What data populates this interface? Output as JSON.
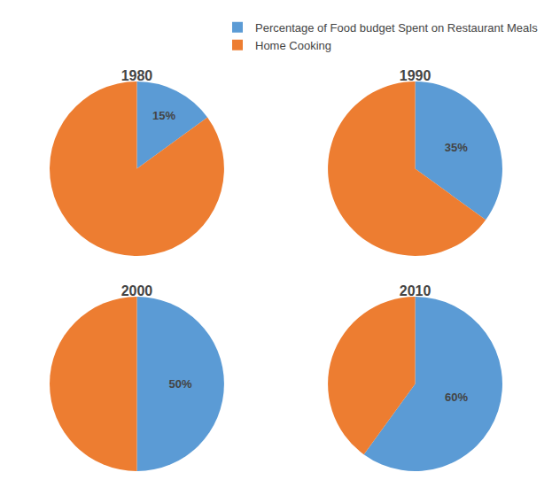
{
  "chart_data": [
    {
      "type": "pie",
      "title": "1980",
      "categories": [
        "Percentage of Food budget Spent on Restaurant Meals",
        "Home Cooking"
      ],
      "values": [
        15,
        85
      ],
      "value_labels": [
        "15%",
        null
      ],
      "data_labels": true,
      "colors": [
        "#5B9BD5",
        "#ED7D31"
      ],
      "legend": "top"
    },
    {
      "type": "pie",
      "title": "1990",
      "categories": [
        "Percentage of Food budget Spent on Restaurant Meals",
        "Home Cooking"
      ],
      "values": [
        35,
        65
      ],
      "value_labels": [
        "35%",
        null
      ],
      "data_labels": true,
      "colors": [
        "#5B9BD5",
        "#ED7D31"
      ],
      "legend": "top"
    },
    {
      "type": "pie",
      "title": "2000",
      "categories": [
        "Percentage of Food budget Spent on Restaurant Meals",
        "Home Cooking"
      ],
      "values": [
        50,
        50
      ],
      "value_labels": [
        "50%",
        null
      ],
      "data_labels": true,
      "colors": [
        "#5B9BD5",
        "#ED7D31"
      ],
      "legend": "top"
    },
    {
      "type": "pie",
      "title": "2010",
      "categories": [
        "Percentage of Food budget Spent on Restaurant Meals",
        "Home Cooking"
      ],
      "values": [
        60,
        40
      ],
      "value_labels": [
        "60%",
        null
      ],
      "data_labels": true,
      "colors": [
        "#5B9BD5",
        "#ED7D31"
      ],
      "legend": "top"
    }
  ]
}
